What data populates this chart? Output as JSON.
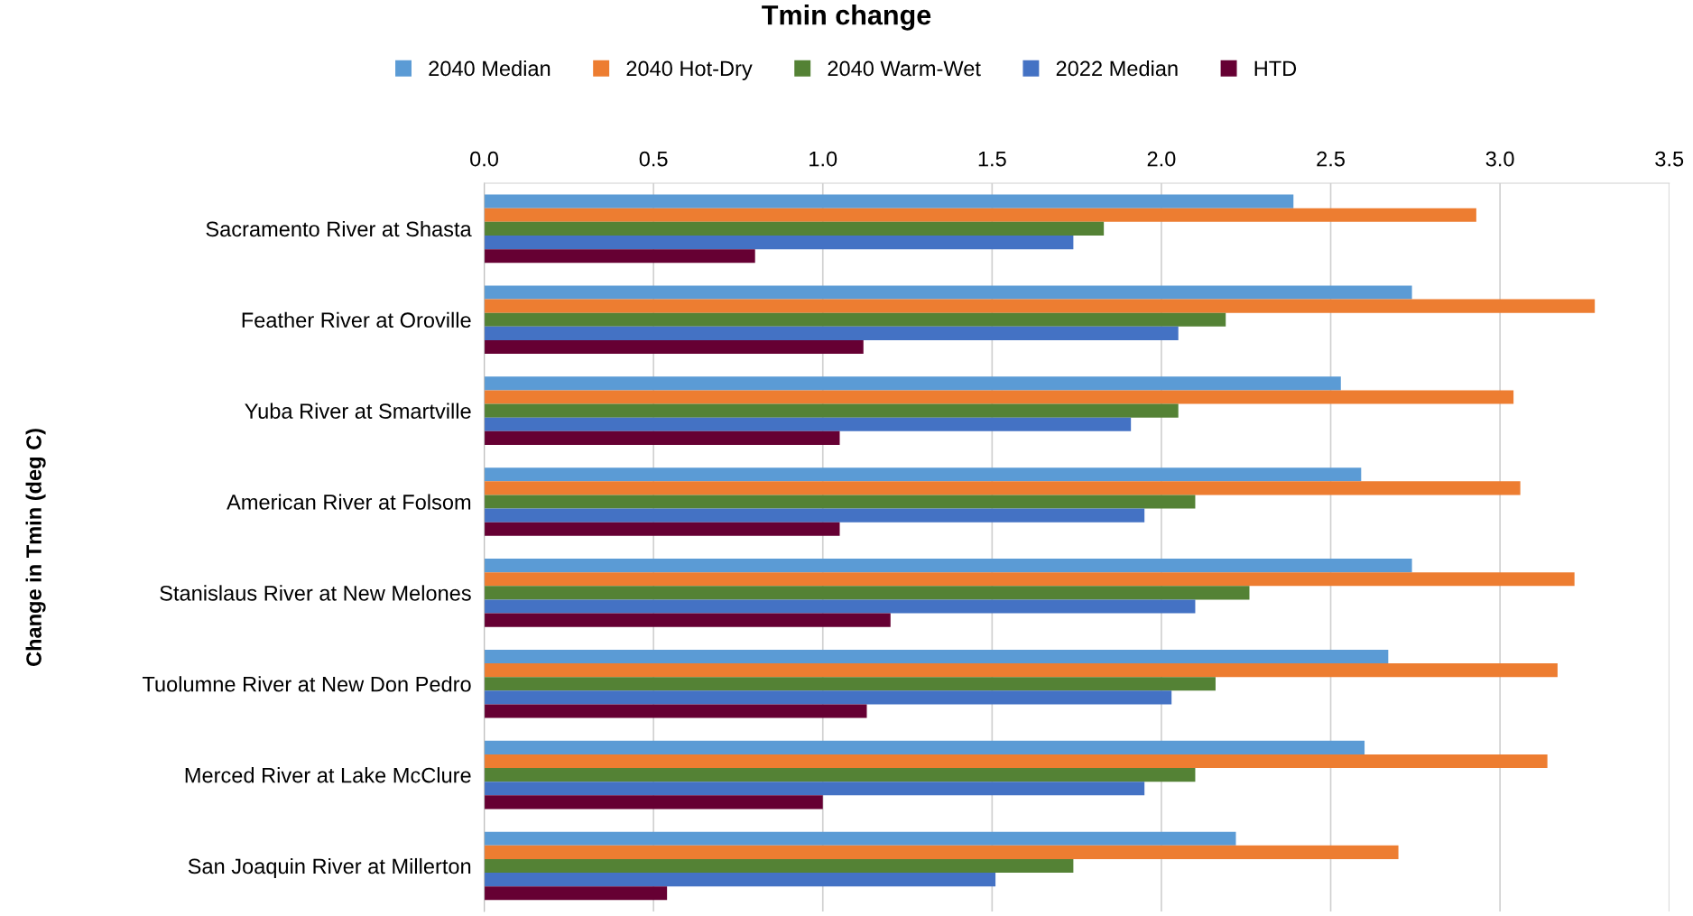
{
  "chart_data": {
    "type": "bar",
    "orientation": "horizontal",
    "title": "Tmin change",
    "ylabel": "Change in Tmin (deg C)",
    "categories": [
      "Sacramento River at Shasta",
      "Feather River at Oroville",
      "Yuba River at Smartville",
      "American River at Folsom",
      "Stanislaus River at New Melones",
      "Tuolumne River at New Don Pedro",
      "Merced River at Lake McClure",
      "San Joaquin River at Millerton"
    ],
    "series": [
      {
        "name": "2040 Median",
        "color": "#5b9bd5",
        "values": [
          2.39,
          2.74,
          2.53,
          2.59,
          2.74,
          2.67,
          2.6,
          2.22
        ]
      },
      {
        "name": "2040 Hot-Dry",
        "color": "#ed7d31",
        "values": [
          2.93,
          3.28,
          3.04,
          3.06,
          3.22,
          3.17,
          3.14,
          2.7
        ]
      },
      {
        "name": "2040 Warm-Wet",
        "color": "#548235",
        "values": [
          1.83,
          2.19,
          2.05,
          2.1,
          2.26,
          2.16,
          2.1,
          1.74
        ]
      },
      {
        "name": "2022 Median",
        "color": "#4472c4",
        "values": [
          1.74,
          2.05,
          1.91,
          1.95,
          2.1,
          2.03,
          1.95,
          1.51
        ]
      },
      {
        "name": "HTD",
        "color": "#660033",
        "values": [
          0.8,
          1.12,
          1.05,
          1.05,
          1.2,
          1.13,
          1.0,
          0.54
        ]
      }
    ],
    "xlim": [
      0,
      3.5
    ],
    "xticks": [
      {
        "value": 0,
        "label": "0.0"
      },
      {
        "value": 0.5,
        "label": "0.5"
      },
      {
        "value": 1,
        "label": "1.0"
      },
      {
        "value": 1.5,
        "label": "1.5"
      },
      {
        "value": 2,
        "label": "2.0"
      },
      {
        "value": 2.5,
        "label": "2.5"
      },
      {
        "value": 3,
        "label": "3.0"
      },
      {
        "value": 3.5,
        "label": "3.5"
      }
    ],
    "grid": "x",
    "legend": "top"
  }
}
